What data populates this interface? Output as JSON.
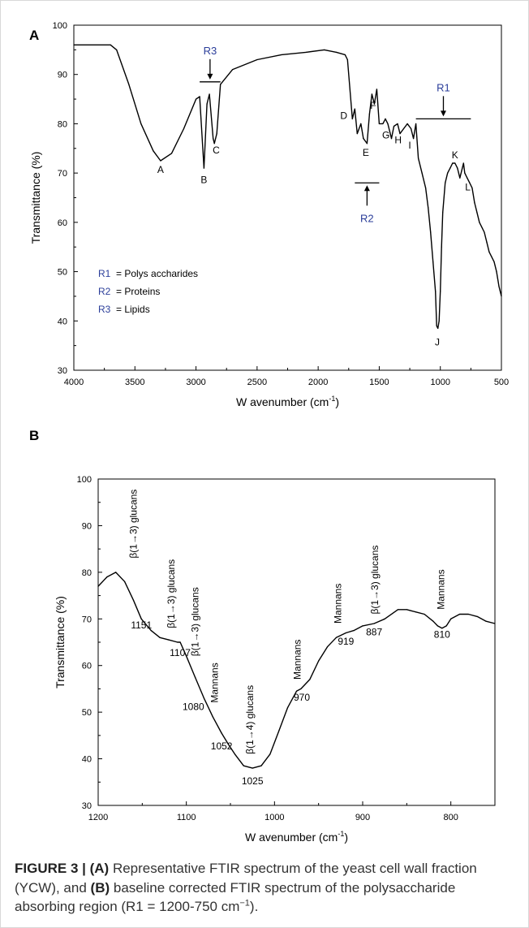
{
  "figure": {
    "caption": {
      "label": "FIGURE 3 | ",
      "a_tag": "(A)",
      "a_text": " Representative FTIR spectrum of the yeast cell wall fraction (YCW), and ",
      "b_tag": "(B)",
      "b_text": " baseline corrected FTIR spectrum of the polysaccharide absorbing region (R1 = 1200-750 cm",
      "sup": "−1",
      "end": ")."
    }
  },
  "chart_data": [
    {
      "panel": "A",
      "type": "line",
      "ylabel": "Transmittance (%)",
      "xlabel_main": "W avenumber (cm",
      "xlabel_sup": "-1",
      "xlabel_end": ")",
      "x_reversed": true,
      "xlim": [
        4000,
        500
      ],
      "ylim": [
        30,
        100
      ],
      "x_ticks": [
        4000,
        3500,
        3000,
        2500,
        2000,
        1500,
        1000,
        500
      ],
      "y_ticks": [
        30,
        40,
        50,
        60,
        70,
        80,
        90,
        100
      ],
      "line_color": "#000000",
      "series": [
        {
          "x": [
            4000,
            3700,
            3650,
            3550,
            3450,
            3350,
            3290,
            3200,
            3100,
            3000,
            2970,
            2935,
            2910,
            2890,
            2860,
            2850,
            2830,
            2800,
            2700,
            2500,
            2300,
            2100,
            1950,
            1850,
            1780,
            1760,
            1720,
            1700,
            1680,
            1650,
            1630,
            1600,
            1580,
            1560,
            1540,
            1520,
            1500,
            1470,
            1450,
            1430,
            1400,
            1380,
            1350,
            1330,
            1300,
            1270,
            1240,
            1220,
            1200,
            1180,
            1150,
            1120,
            1100,
            1080,
            1060,
            1040,
            1030,
            1020,
            1010,
            1000,
            990,
            980,
            960,
            940,
            920,
            900,
            880,
            860,
            840,
            820,
            810,
            800,
            780,
            760,
            740,
            720,
            700,
            680,
            660,
            640,
            620,
            600,
            580,
            560,
            540,
            520,
            500
          ],
          "y": [
            96,
            96,
            95,
            88,
            80,
            74.5,
            72.5,
            74,
            79,
            85,
            85.5,
            71,
            84,
            86,
            77,
            76,
            78,
            88,
            91,
            93,
            94,
            94.5,
            95,
            94.5,
            94,
            93,
            81,
            83,
            78,
            80,
            77,
            76,
            82,
            86,
            84,
            87,
            80,
            80,
            81,
            80,
            77,
            79.5,
            80,
            78,
            79,
            80,
            79,
            77,
            80,
            73,
            70,
            67,
            63,
            58,
            52,
            46,
            39,
            38.5,
            40,
            46,
            55,
            62,
            68,
            70,
            71,
            72,
            72,
            71,
            69,
            71,
            72,
            70,
            69,
            68,
            67,
            64,
            62,
            60,
            59,
            58,
            56,
            54,
            53,
            52,
            50,
            47,
            45
          ]
        }
      ],
      "annotations": [
        {
          "text": "A",
          "x": 3290,
          "y": 70
        },
        {
          "text": "B",
          "x": 2935,
          "y": 68
        },
        {
          "text": "C",
          "x": 2835,
          "y": 74
        },
        {
          "text": "D",
          "x": 1790,
          "y": 81
        },
        {
          "text": "E",
          "x": 1610,
          "y": 73.5
        },
        {
          "text": "F",
          "x": 1550,
          "y": 83
        },
        {
          "text": "G",
          "x": 1445,
          "y": 77
        },
        {
          "text": "H",
          "x": 1345,
          "y": 76
        },
        {
          "text": "I",
          "x": 1250,
          "y": 75
        },
        {
          "text": "J",
          "x": 1025,
          "y": 35
        },
        {
          "text": "K",
          "x": 880,
          "y": 73
        },
        {
          "text": "L",
          "x": 775,
          "y": 66.5
        }
      ],
      "regions": [
        {
          "label": "R3",
          "x_start": 2970,
          "x_end": 2800,
          "y": 88.5,
          "color": "#2b3e9a",
          "label_side": "above"
        },
        {
          "label": "R2",
          "x_start": 1700,
          "x_end": 1500,
          "y": 68,
          "color": "#2b3e9a",
          "label_side": "below"
        },
        {
          "label": "R1",
          "x_start": 1200,
          "x_end": 750,
          "y": 81,
          "color": "#2b3e9a",
          "label_side": "above"
        }
      ],
      "legend": [
        {
          "key": "R1",
          "text": "= Polys accharides"
        },
        {
          "key": "R2",
          "text": "= Proteins"
        },
        {
          "key": "R3",
          "text": "= Lipids"
        }
      ]
    },
    {
      "panel": "B",
      "type": "line",
      "ylabel": "Transmittance (%)",
      "xlabel_main": "W avenumber (cm",
      "xlabel_sup": "-1",
      "xlabel_end": ")",
      "x_reversed": true,
      "xlim": [
        1200,
        750
      ],
      "ylim": [
        30,
        100
      ],
      "x_ticks": [
        1200,
        1100,
        1000,
        900,
        800
      ],
      "y_ticks": [
        30,
        40,
        50,
        60,
        70,
        80,
        90,
        100
      ],
      "line_color": "#000000",
      "series": [
        {
          "x": [
            1200,
            1190,
            1180,
            1170,
            1160,
            1151,
            1140,
            1130,
            1120,
            1110,
            1107,
            1100,
            1090,
            1080,
            1070,
            1060,
            1052,
            1045,
            1035,
            1025,
            1015,
            1005,
            995,
            985,
            975,
            970,
            960,
            950,
            940,
            930,
            919,
            910,
            900,
            887,
            875,
            860,
            850,
            840,
            830,
            820,
            815,
            810,
            805,
            800,
            790,
            780,
            770,
            760,
            750
          ],
          "y": [
            77,
            79,
            80,
            78,
            74,
            70,
            67.5,
            66,
            65.5,
            65,
            65,
            62,
            57.5,
            53,
            49,
            45.5,
            43,
            41,
            38.5,
            38,
            38.5,
            41,
            46,
            51,
            54.5,
            55,
            57,
            61,
            64,
            66,
            67,
            67.5,
            68.5,
            69,
            70,
            72,
            72,
            71.5,
            71,
            69.5,
            68.5,
            68,
            68.5,
            70,
            71,
            71,
            70.5,
            69.5,
            69
          ]
        }
      ],
      "value_labels": [
        {
          "text": "1151",
          "x": 1151,
          "y": 68
        },
        {
          "text": "1107",
          "x": 1107,
          "y": 62
        },
        {
          "text": "1080",
          "x": 1092,
          "y": 50.5
        },
        {
          "text": "1052",
          "x": 1060,
          "y": 42
        },
        {
          "text": "1025",
          "x": 1025,
          "y": 34.5
        },
        {
          "text": "970",
          "x": 969,
          "y": 52.5
        },
        {
          "text": "919",
          "x": 919,
          "y": 64.5
        },
        {
          "text": "887",
          "x": 887,
          "y": 66.5
        },
        {
          "text": "810",
          "x": 810,
          "y": 66
        }
      ],
      "rotated_labels": [
        {
          "text": "β(1→3) glucans",
          "x": 1160,
          "y": 83
        },
        {
          "text": "β(1→3) glucans",
          "x": 1117,
          "y": 68
        },
        {
          "text": "β(1→3) glucans",
          "x": 1090,
          "y": 62
        },
        {
          "text": "Mannans",
          "x": 1068,
          "y": 52
        },
        {
          "text": "β(1→4) glucans",
          "x": 1028,
          "y": 41
        },
        {
          "text": "Mannans",
          "x": 974,
          "y": 57
        },
        {
          "text": "Mannans",
          "x": 928,
          "y": 69
        },
        {
          "text": "β(1→3) glucans",
          "x": 886,
          "y": 71
        },
        {
          "text": "Mannans",
          "x": 811,
          "y": 72
        }
      ]
    }
  ]
}
